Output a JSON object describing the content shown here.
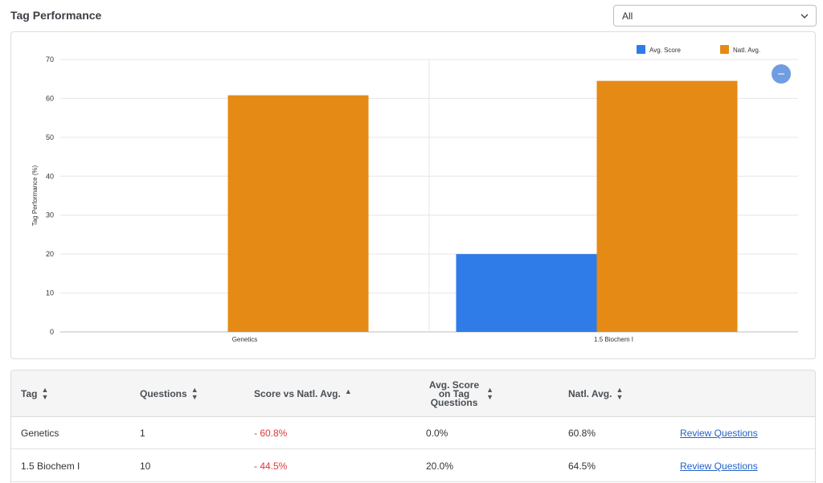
{
  "header": {
    "title": "Tag Performance",
    "filter": {
      "selected": "All"
    }
  },
  "chart_data": {
    "type": "bar",
    "categories": [
      "Genetics",
      "1.5 Biochem I"
    ],
    "series": [
      {
        "name": "Avg. Score",
        "color": "#2f7be8",
        "values": [
          0,
          20
        ]
      },
      {
        "name": "Natl. Avg.",
        "color": "#e68a16",
        "values": [
          60.8,
          64.5
        ]
      }
    ],
    "ylabel": "Tag Performance (%)",
    "ylim": [
      0,
      70
    ],
    "yticks": [
      0,
      10,
      20,
      30,
      40,
      50,
      60,
      70
    ],
    "grid": true,
    "legend": "top-right"
  },
  "chart_button": {
    "icon": "more-icon",
    "label": "..."
  },
  "table": {
    "columns": [
      {
        "label": "Tag",
        "sort": "both"
      },
      {
        "label": "Questions",
        "sort": "both"
      },
      {
        "label": "Score vs Natl. Avg.",
        "sort": "up"
      },
      {
        "label": "Avg. Score on Tag Questions",
        "sort": "both"
      },
      {
        "label": "Natl. Avg.",
        "sort": "both"
      }
    ],
    "rows": [
      {
        "tag": "Genetics",
        "questions": "1",
        "score_vs": "- 60.8%",
        "avg_score": "0.0%",
        "natl_avg": "60.8%",
        "action": "Review Questions"
      },
      {
        "tag": "1.5 Biochem I",
        "questions": "10",
        "score_vs": "- 44.5%",
        "avg_score": "20.0%",
        "natl_avg": "64.5%",
        "action": "Review Questions"
      }
    ]
  },
  "colors": {
    "negative": "#d93a3a",
    "link": "#2462c8"
  }
}
